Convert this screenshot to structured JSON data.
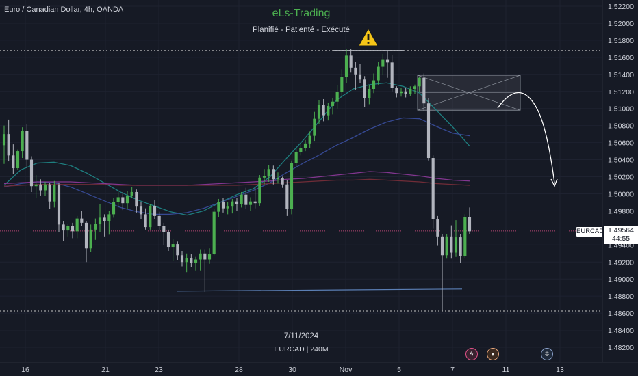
{
  "header": {
    "symbol_title": "Euro / Canadian Dollar, 4h, OANDA",
    "brand": "eLs-Trading",
    "tagline": "Planifié - Patienté - Exécuté",
    "date": "7/11/2024",
    "ticker": "EURCAD | 240M"
  },
  "price_tag": {
    "symbol": "EURCAD",
    "price": "1.49564",
    "countdown": "44:55"
  },
  "icons": [
    "warning-icon",
    "lightning-event-icon",
    "person-event-icon",
    "gear-event-icon"
  ],
  "colors": {
    "background": "#161a25",
    "bull": "#4caf50",
    "bear": "#b2b5be",
    "ma_fast": "#1f8a8a",
    "ma_mid": "#3a4fa0",
    "ma_slow": "#8e3a9b",
    "brand": "#4caf50"
  },
  "chart_data": {
    "type": "candlestick",
    "timeframe": "4h",
    "y_ticks": [
      "1.52200",
      "1.52000",
      "1.51800",
      "1.51600",
      "1.51400",
      "1.51200",
      "1.51000",
      "1.50800",
      "1.50600",
      "1.50400",
      "1.50200",
      "1.50000",
      "1.49800",
      "1.49600",
      "1.49400",
      "1.49200",
      "1.49000",
      "1.48800",
      "1.48600",
      "1.48400",
      "1.48200"
    ],
    "x_ticks": [
      "16",
      "21",
      "23",
      "28",
      "30",
      "Nov",
      "5",
      "7",
      "11",
      "13"
    ],
    "ylim": [
      1.4815,
      1.5225
    ],
    "levels": {
      "resistance": 1.5168,
      "support": 1.48625,
      "current_price": 1.49564,
      "trendline_low": 1.48875
    },
    "zone": {
      "x_start": "Nov 5",
      "x_end": "Nov 11",
      "top": 1.5139,
      "bottom": 1.5098
    },
    "candles": [
      [
        1.5057,
        1.508,
        1.5035,
        1.507
      ],
      [
        1.507,
        1.5087,
        1.5038,
        1.5045
      ],
      [
        1.5045,
        1.5058,
        1.5023,
        1.503
      ],
      [
        1.503,
        1.5052,
        1.5028,
        1.505
      ],
      [
        1.505,
        1.5078,
        1.5042,
        1.5074
      ],
      [
        1.5074,
        1.5082,
        1.503,
        1.504
      ],
      [
        1.504,
        1.5044,
        1.5002,
        1.5009
      ],
      [
        1.5009,
        1.5022,
        1.4995,
        1.5011
      ],
      [
        1.5011,
        1.5017,
        1.4998,
        1.5004
      ],
      [
        1.5004,
        1.5014,
        1.4998,
        1.5011
      ],
      [
        1.5011,
        1.5013,
        1.4982,
        1.4991
      ],
      [
        1.4991,
        1.5015,
        1.4984,
        1.501
      ],
      [
        1.501,
        1.5013,
        1.4955,
        1.4964
      ],
      [
        1.4964,
        1.4968,
        1.4945,
        1.4957
      ],
      [
        1.4957,
        1.4965,
        1.495,
        1.4962
      ],
      [
        1.4962,
        1.4966,
        1.4948,
        1.4956
      ],
      [
        1.4956,
        1.4974,
        1.4948,
        1.4971
      ],
      [
        1.4971,
        1.498,
        1.4962,
        1.4966
      ],
      [
        1.4966,
        1.4968,
        1.492,
        1.4936
      ],
      [
        1.4936,
        1.4964,
        1.4932,
        1.4958
      ],
      [
        1.4958,
        1.4971,
        1.4946,
        1.4965
      ],
      [
        1.4965,
        1.4988,
        1.4955,
        1.4972
      ],
      [
        1.4972,
        1.4976,
        1.495,
        1.4968
      ],
      [
        1.4968,
        1.498,
        1.4952,
        1.4976
      ],
      [
        1.4976,
        1.4995,
        1.4972,
        1.499
      ],
      [
        1.499,
        1.5002,
        1.4984,
        1.4996
      ],
      [
        1.4996,
        1.5002,
        1.4981,
        1.4989
      ],
      [
        1.4989,
        1.5003,
        1.4982,
        1.4998
      ],
      [
        1.4998,
        1.5008,
        1.4995,
        1.5002
      ],
      [
        1.5002,
        1.5005,
        1.4978,
        1.4985
      ],
      [
        1.4985,
        1.499,
        1.497,
        1.4976
      ],
      [
        1.4976,
        1.4983,
        1.4958,
        1.4961
      ],
      [
        1.4961,
        1.4988,
        1.4958,
        1.4986
      ],
      [
        1.4986,
        1.4993,
        1.497,
        1.4974
      ],
      [
        1.4974,
        1.4979,
        1.4958,
        1.4962
      ],
      [
        1.4962,
        1.4966,
        1.494,
        1.4955
      ],
      [
        1.4955,
        1.4958,
        1.4933,
        1.4937
      ],
      [
        1.4937,
        1.4947,
        1.4921,
        1.4941
      ],
      [
        1.4941,
        1.4944,
        1.4922,
        1.4928
      ],
      [
        1.4928,
        1.4933,
        1.4915,
        1.492
      ],
      [
        1.492,
        1.493,
        1.4908,
        1.4925
      ],
      [
        1.4925,
        1.4929,
        1.4914,
        1.4919
      ],
      [
        1.4919,
        1.4926,
        1.491,
        1.4923
      ],
      [
        1.4923,
        1.4935,
        1.491,
        1.493
      ],
      [
        1.493,
        1.4935,
        1.4885,
        1.4923
      ],
      [
        1.4923,
        1.4936,
        1.4918,
        1.4929
      ],
      [
        1.4929,
        1.4982,
        1.4928,
        1.4979
      ],
      [
        1.4979,
        1.4994,
        1.4973,
        1.499
      ],
      [
        1.499,
        1.4995,
        1.4978,
        1.4983
      ],
      [
        1.4983,
        1.499,
        1.4976,
        1.4985
      ],
      [
        1.4985,
        1.4994,
        1.4977,
        1.4991
      ],
      [
        1.4991,
        1.4995,
        1.498,
        1.4988
      ],
      [
        1.4988,
        1.5002,
        1.4984,
        1.4999
      ],
      [
        1.4999,
        1.5007,
        1.4982,
        1.4987
      ],
      [
        1.4987,
        1.4996,
        1.498,
        1.4991
      ],
      [
        1.4991,
        1.5008,
        1.4983,
        1.4989
      ],
      [
        1.4989,
        1.5022,
        1.4986,
        1.5019
      ],
      [
        1.5019,
        1.5029,
        1.5011,
        1.5021
      ],
      [
        1.5021,
        1.5034,
        1.5014,
        1.5029
      ],
      [
        1.5029,
        1.5033,
        1.5011,
        1.5017
      ],
      [
        1.5017,
        1.5025,
        1.5012,
        1.5018
      ],
      [
        1.5018,
        1.502,
        1.5007,
        1.5011
      ],
      [
        1.5011,
        1.5016,
        1.4974,
        1.4982
      ],
      [
        1.4982,
        1.5039,
        1.4976,
        1.5036
      ],
      [
        1.5036,
        1.5054,
        1.5031,
        1.5049
      ],
      [
        1.5049,
        1.5059,
        1.5045,
        1.5054
      ],
      [
        1.5054,
        1.5063,
        1.505,
        1.5059
      ],
      [
        1.5059,
        1.5073,
        1.5054,
        1.5068
      ],
      [
        1.5068,
        1.5096,
        1.5062,
        1.5088
      ],
      [
        1.5088,
        1.511,
        1.5082,
        1.5104
      ],
      [
        1.5104,
        1.5111,
        1.5085,
        1.5092
      ],
      [
        1.5092,
        1.5107,
        1.5086,
        1.5103
      ],
      [
        1.5103,
        1.5112,
        1.5093,
        1.5108
      ],
      [
        1.5108,
        1.5127,
        1.51,
        1.5119
      ],
      [
        1.5119,
        1.5146,
        1.5113,
        1.5137
      ],
      [
        1.5137,
        1.517,
        1.513,
        1.5162
      ],
      [
        1.5162,
        1.517,
        1.5142,
        1.5148
      ],
      [
        1.5148,
        1.5155,
        1.5122,
        1.514
      ],
      [
        1.514,
        1.5152,
        1.513,
        1.5134
      ],
      [
        1.5134,
        1.5138,
        1.5102,
        1.5112
      ],
      [
        1.5112,
        1.5127,
        1.5105,
        1.5123
      ],
      [
        1.5123,
        1.5141,
        1.5118,
        1.5133
      ],
      [
        1.5133,
        1.5155,
        1.5128,
        1.5149
      ],
      [
        1.5149,
        1.5164,
        1.5139,
        1.5157
      ],
      [
        1.5157,
        1.5168,
        1.5136,
        1.5154
      ],
      [
        1.5154,
        1.5163,
        1.512,
        1.5124
      ],
      [
        1.5124,
        1.5126,
        1.5113,
        1.5118
      ],
      [
        1.5118,
        1.5124,
        1.5114,
        1.512
      ],
      [
        1.512,
        1.5124,
        1.5113,
        1.5117
      ],
      [
        1.5117,
        1.5126,
        1.5115,
        1.5123
      ],
      [
        1.5123,
        1.5128,
        1.5117,
        1.5126
      ],
      [
        1.5126,
        1.5137,
        1.5119,
        1.5136
      ],
      [
        1.5136,
        1.5141,
        1.5097,
        1.5106
      ],
      [
        1.5106,
        1.5112,
        1.5039,
        1.5042
      ],
      [
        1.5042,
        1.5045,
        1.4959,
        1.497
      ],
      [
        1.497,
        1.4974,
        1.4939,
        1.495
      ],
      [
        1.495,
        1.4953,
        1.4863,
        1.4928
      ],
      [
        1.4928,
        1.4953,
        1.4924,
        1.495
      ],
      [
        1.495,
        1.4963,
        1.4924,
        1.4931
      ],
      [
        1.4931,
        1.4969,
        1.4926,
        1.4949
      ],
      [
        1.4949,
        1.4953,
        1.4919,
        1.4927
      ],
      [
        1.4927,
        1.4976,
        1.4925,
        1.4973
      ],
      [
        1.4973,
        1.4984,
        1.4953,
        1.4956
      ]
    ],
    "moving_averages": [
      {
        "color": "#1f8a8a",
        "values": [
          1.501,
          1.5028,
          1.5036,
          1.5037,
          1.5033,
          1.5024,
          1.5013,
          1.5002,
          1.4993,
          1.4986,
          1.4979,
          1.4975,
          1.498,
          1.499,
          1.4999,
          1.5006,
          1.502,
          1.5042,
          1.5063,
          1.5086,
          1.511,
          1.5123,
          1.5128,
          1.513,
          1.5126,
          1.5118,
          1.5098,
          1.5078,
          1.5056
        ]
      },
      {
        "color": "#3a4fa0",
        "values": [
          1.5008,
          1.5012,
          1.5014,
          1.5013,
          1.5008,
          1.5,
          1.4992,
          1.4984,
          1.4979,
          1.4976,
          1.4976,
          1.4978,
          1.4983,
          1.499,
          1.4997,
          1.5004,
          1.5013,
          1.5025,
          1.5036,
          1.5046,
          1.5057,
          1.5066,
          1.5076,
          1.5084,
          1.5089,
          1.5088,
          1.5079,
          1.5071,
          1.5068
        ]
      },
      {
        "color": "#8e3a9b",
        "values": [
          1.5012,
          1.5013,
          1.5014,
          1.5014,
          1.5014,
          1.5013,
          1.5012,
          1.5011,
          1.501,
          1.501,
          1.501,
          1.501,
          1.5011,
          1.5012,
          1.5013,
          1.5014,
          1.5015,
          1.5017,
          1.5018,
          1.502,
          1.5022,
          1.5024,
          1.5026,
          1.5025,
          1.5023,
          1.5021,
          1.5018,
          1.5016,
          1.5015
        ]
      },
      {
        "color": "#7a2f3a",
        "values": [
          1.5009,
          1.501,
          1.5011,
          1.5011,
          1.5011,
          1.5011,
          1.5011,
          1.501,
          1.501,
          1.501,
          1.501,
          1.501,
          1.501,
          1.501,
          1.501,
          1.5011,
          1.5012,
          1.5013,
          1.5014,
          1.5015,
          1.5016,
          1.5016,
          1.5017,
          1.5016,
          1.5015,
          1.5014,
          1.5012,
          1.5011,
          1.501
        ]
      }
    ]
  }
}
